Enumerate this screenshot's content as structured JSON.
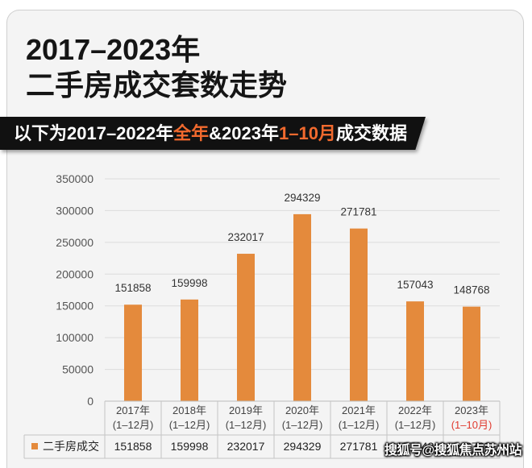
{
  "banner": {
    "parts": [
      {
        "text": "以下为2017–2022年",
        "color": "#ffffff"
      },
      {
        "text": "全年",
        "color": "#f26a2e"
      },
      {
        "text": "&2023年",
        "color": "#ffffff"
      },
      {
        "text": "1–10月",
        "color": "#f26a2e"
      },
      {
        "text": "成交数据",
        "color": "#ffffff"
      }
    ]
  },
  "colors": {
    "card_bg": "#f4f4f4",
    "banner_bg": "#111111",
    "bar": "#e48a3c",
    "grid": "#dcdcdc",
    "table_line": "#c4c4c4",
    "text": "#333333"
  },
  "chart_data": {
    "type": "bar",
    "title_lines": [
      "2017–2023年",
      "二手房成交套数走势"
    ],
    "categories": [
      "2017年",
      "2018年",
      "2019年",
      "2020年",
      "2021年",
      "2022年",
      "2023年"
    ],
    "periods": [
      "(1–12月)",
      "(1–12月)",
      "(1–12月)",
      "(1–12月)",
      "(1–12月)",
      "(1–12月)",
      "(1–10月)"
    ],
    "period_colors": [
      "#444444",
      "#444444",
      "#444444",
      "#444444",
      "#444444",
      "#444444",
      "#e03a2f"
    ],
    "series": [
      {
        "name": "二手房成交",
        "values": [
          151858,
          159998,
          232017,
          294329,
          271781,
          157043,
          148768
        ],
        "color": "#e48a3c"
      }
    ],
    "ylim": [
      0,
      350000
    ],
    "yticks": [
      0,
      50000,
      100000,
      150000,
      200000,
      250000,
      300000,
      350000
    ],
    "grid": true,
    "data_labels": true,
    "data_table": true,
    "legend": "bottom-left"
  },
  "watermark": "搜狐号@搜狐焦点苏州站"
}
